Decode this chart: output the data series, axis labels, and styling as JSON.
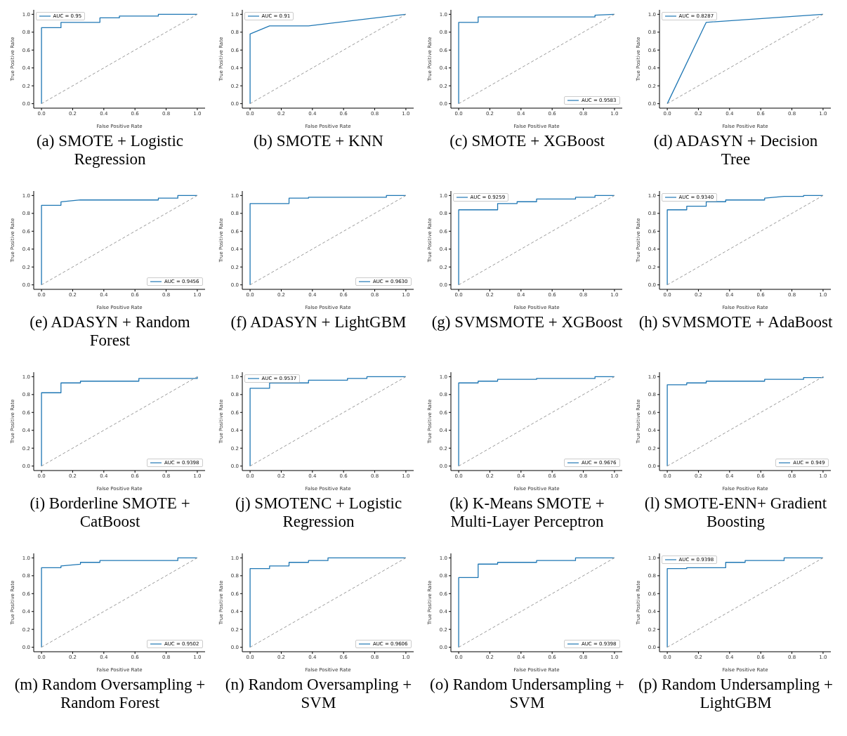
{
  "chart_data": [
    {
      "type": "line",
      "annotations": [
        "(a) SMOTE + Logistic Regression"
      ],
      "xlabel": "False Positive Rate",
      "ylabel": "True Positive Rate",
      "xlim": [
        -0.05,
        1.05
      ],
      "ylim": [
        -0.05,
        1.05
      ],
      "xticks": [
        {
          "value": 0,
          "label": "0.0"
        },
        {
          "value": 0.2,
          "label": "0.2"
        },
        {
          "value": 0.4,
          "label": "0.4"
        },
        {
          "value": 0.6,
          "label": "0.6"
        },
        {
          "value": 0.8,
          "label": "0.8"
        },
        {
          "value": 1,
          "label": "1.0"
        }
      ],
      "yticks": [
        {
          "value": 0,
          "label": "0.0"
        },
        {
          "value": 0.2,
          "label": "0.2"
        },
        {
          "value": 0.4,
          "label": "0.4"
        },
        {
          "value": 0.6,
          "label": "0.6"
        },
        {
          "value": 0.8,
          "label": "0.8"
        },
        {
          "value": 1,
          "label": "1.0"
        }
      ],
      "legend": "top left",
      "grid": false,
      "series": [
        {
          "name": "AUC = 0.95",
          "color": "#1f77b4",
          "line_style": "solid",
          "x": [
            0,
            0,
            0.125,
            0.125,
            0.375,
            0.375,
            0.5,
            0.5,
            0.75,
            0.75,
            1
          ],
          "values": [
            0,
            0.85,
            0.85,
            0.91,
            0.91,
            0.96,
            0.96,
            0.98,
            0.98,
            1,
            1
          ]
        },
        {
          "color": "#999999",
          "line_style": "dashed",
          "x": [
            0,
            1
          ],
          "values": [
            0,
            1
          ]
        }
      ]
    },
    {
      "type": "line",
      "annotations": [
        "(b) SMOTE + KNN"
      ],
      "xlabel": "False Positive Rate",
      "ylabel": "True Positive Rate",
      "xlim": [
        -0.05,
        1.05
      ],
      "ylim": [
        -0.05,
        1.05
      ],
      "xticks": [
        {
          "value": 0,
          "label": "0.0"
        },
        {
          "value": 0.2,
          "label": "0.2"
        },
        {
          "value": 0.4,
          "label": "0.4"
        },
        {
          "value": 0.6,
          "label": "0.6"
        },
        {
          "value": 0.8,
          "label": "0.8"
        },
        {
          "value": 1,
          "label": "1.0"
        }
      ],
      "yticks": [
        {
          "value": 0,
          "label": "0.0"
        },
        {
          "value": 0.2,
          "label": "0.2"
        },
        {
          "value": 0.4,
          "label": "0.4"
        },
        {
          "value": 0.6,
          "label": "0.6"
        },
        {
          "value": 0.8,
          "label": "0.8"
        },
        {
          "value": 1,
          "label": "1.0"
        }
      ],
      "legend": "top left",
      "grid": false,
      "series": [
        {
          "name": "AUC = 0.91",
          "color": "#1f77b4",
          "line_style": "solid",
          "x": [
            0,
            0,
            0.125,
            0.375,
            1
          ],
          "values": [
            0,
            0.78,
            0.87,
            0.87,
            1
          ]
        },
        {
          "color": "#999999",
          "line_style": "dashed",
          "x": [
            0,
            1
          ],
          "values": [
            0,
            1
          ]
        }
      ]
    },
    {
      "type": "line",
      "annotations": [
        "(c) SMOTE + XGBoost"
      ],
      "xlabel": "False Positive Rate",
      "ylabel": "True Positive Rate",
      "xlim": [
        -0.05,
        1.05
      ],
      "ylim": [
        -0.05,
        1.05
      ],
      "xticks": [
        {
          "value": 0,
          "label": "0.0"
        },
        {
          "value": 0.2,
          "label": "0.2"
        },
        {
          "value": 0.4,
          "label": "0.4"
        },
        {
          "value": 0.6,
          "label": "0.6"
        },
        {
          "value": 0.8,
          "label": "0.8"
        },
        {
          "value": 1,
          "label": "1.0"
        }
      ],
      "yticks": [
        {
          "value": 0,
          "label": "0.0"
        },
        {
          "value": 0.2,
          "label": "0.2"
        },
        {
          "value": 0.4,
          "label": "0.4"
        },
        {
          "value": 0.6,
          "label": "0.6"
        },
        {
          "value": 0.8,
          "label": "0.8"
        },
        {
          "value": 1,
          "label": "1.0"
        }
      ],
      "legend": "bottom right",
      "grid": false,
      "series": [
        {
          "name": "AUC = 0.9583",
          "color": "#1f77b4",
          "line_style": "solid",
          "x": [
            0,
            0,
            0.125,
            0.125,
            0.875,
            0.875,
            1
          ],
          "values": [
            0,
            0.91,
            0.91,
            0.97,
            0.97,
            0.99,
            1
          ]
        },
        {
          "color": "#999999",
          "line_style": "dashed",
          "x": [
            0,
            1
          ],
          "values": [
            0,
            1
          ]
        }
      ]
    },
    {
      "type": "line",
      "annotations": [
        "(d) ADASYN + Decision Tree"
      ],
      "xlabel": "False Positive Rate",
      "ylabel": "True Positive Rate",
      "xlim": [
        -0.05,
        1.05
      ],
      "ylim": [
        -0.05,
        1.05
      ],
      "xticks": [
        {
          "value": 0,
          "label": "0.0"
        },
        {
          "value": 0.2,
          "label": "0.2"
        },
        {
          "value": 0.4,
          "label": "0.4"
        },
        {
          "value": 0.6,
          "label": "0.6"
        },
        {
          "value": 0.8,
          "label": "0.8"
        },
        {
          "value": 1,
          "label": "1.0"
        }
      ],
      "yticks": [
        {
          "value": 0,
          "label": "0.0"
        },
        {
          "value": 0.2,
          "label": "0.2"
        },
        {
          "value": 0.4,
          "label": "0.4"
        },
        {
          "value": 0.6,
          "label": "0.6"
        },
        {
          "value": 0.8,
          "label": "0.8"
        },
        {
          "value": 1,
          "label": "1.0"
        }
      ],
      "legend": "top left",
      "grid": false,
      "series": [
        {
          "name": "AUC = 0.8287",
          "color": "#1f77b4",
          "line_style": "solid",
          "x": [
            0,
            0.25,
            1
          ],
          "values": [
            0,
            0.91,
            1
          ]
        },
        {
          "color": "#999999",
          "line_style": "dashed",
          "x": [
            0,
            1
          ],
          "values": [
            0,
            1
          ]
        }
      ]
    },
    {
      "type": "line",
      "annotations": [
        "(e) ADASYN + Random Forest"
      ],
      "xlabel": "False Positive Rate",
      "ylabel": "True Positive Rate",
      "xlim": [
        -0.05,
        1.05
      ],
      "ylim": [
        -0.05,
        1.05
      ],
      "xticks": [
        {
          "value": 0,
          "label": "0.0"
        },
        {
          "value": 0.2,
          "label": "0.2"
        },
        {
          "value": 0.4,
          "label": "0.4"
        },
        {
          "value": 0.6,
          "label": "0.6"
        },
        {
          "value": 0.8,
          "label": "0.8"
        },
        {
          "value": 1,
          "label": "1.0"
        }
      ],
      "yticks": [
        {
          "value": 0,
          "label": "0.0"
        },
        {
          "value": 0.2,
          "label": "0.2"
        },
        {
          "value": 0.4,
          "label": "0.4"
        },
        {
          "value": 0.6,
          "label": "0.6"
        },
        {
          "value": 0.8,
          "label": "0.8"
        },
        {
          "value": 1,
          "label": "1.0"
        }
      ],
      "legend": "bottom right",
      "grid": false,
      "series": [
        {
          "name": "AUC = 0.9456",
          "color": "#1f77b4",
          "line_style": "solid",
          "x": [
            0,
            0,
            0.125,
            0.125,
            0.25,
            0.75,
            0.75,
            0.875,
            0.875,
            1
          ],
          "values": [
            0,
            0.89,
            0.89,
            0.93,
            0.95,
            0.95,
            0.97,
            0.97,
            1,
            1
          ]
        },
        {
          "color": "#999999",
          "line_style": "dashed",
          "x": [
            0,
            1
          ],
          "values": [
            0,
            1
          ]
        }
      ]
    },
    {
      "type": "line",
      "annotations": [
        "(f) ADASYN + LightGBM"
      ],
      "xlabel": "False Positive Rate",
      "ylabel": "True Positive Rate",
      "xlim": [
        -0.05,
        1.05
      ],
      "ylim": [
        -0.05,
        1.05
      ],
      "xticks": [
        {
          "value": 0,
          "label": "0.0"
        },
        {
          "value": 0.2,
          "label": "0.2"
        },
        {
          "value": 0.4,
          "label": "0.4"
        },
        {
          "value": 0.6,
          "label": "0.6"
        },
        {
          "value": 0.8,
          "label": "0.8"
        },
        {
          "value": 1,
          "label": "1.0"
        }
      ],
      "yticks": [
        {
          "value": 0,
          "label": "0.0"
        },
        {
          "value": 0.2,
          "label": "0.2"
        },
        {
          "value": 0.4,
          "label": "0.4"
        },
        {
          "value": 0.6,
          "label": "0.6"
        },
        {
          "value": 0.8,
          "label": "0.8"
        },
        {
          "value": 1,
          "label": "1.0"
        }
      ],
      "legend": "bottom right",
      "grid": false,
      "series": [
        {
          "name": "AUC = 0.9630",
          "color": "#1f77b4",
          "line_style": "solid",
          "x": [
            0,
            0,
            0.25,
            0.25,
            0.375,
            0.375,
            0.875,
            0.875,
            1
          ],
          "values": [
            0,
            0.91,
            0.91,
            0.97,
            0.97,
            0.98,
            0.98,
            1,
            1
          ]
        },
        {
          "color": "#999999",
          "line_style": "dashed",
          "x": [
            0,
            1
          ],
          "values": [
            0,
            1
          ]
        }
      ]
    },
    {
      "type": "line",
      "annotations": [
        "(g) SVMSMOTE + XGBoost"
      ],
      "xlabel": "False Positive Rate",
      "ylabel": "True Positive Rate",
      "xlim": [
        -0.05,
        1.05
      ],
      "ylim": [
        -0.05,
        1.05
      ],
      "xticks": [
        {
          "value": 0,
          "label": "0.0"
        },
        {
          "value": 0.2,
          "label": "0.2"
        },
        {
          "value": 0.4,
          "label": "0.4"
        },
        {
          "value": 0.6,
          "label": "0.6"
        },
        {
          "value": 0.8,
          "label": "0.8"
        },
        {
          "value": 1,
          "label": "1.0"
        }
      ],
      "yticks": [
        {
          "value": 0,
          "label": "0.0"
        },
        {
          "value": 0.2,
          "label": "0.2"
        },
        {
          "value": 0.4,
          "label": "0.4"
        },
        {
          "value": 0.6,
          "label": "0.6"
        },
        {
          "value": 0.8,
          "label": "0.8"
        },
        {
          "value": 1,
          "label": "1.0"
        }
      ],
      "legend": "top left",
      "grid": false,
      "series": [
        {
          "name": "AUC = 0.9259",
          "color": "#1f77b4",
          "line_style": "solid",
          "x": [
            0,
            0,
            0.25,
            0.25,
            0.375,
            0.375,
            0.5,
            0.5,
            0.75,
            0.75,
            0.875,
            0.875,
            1
          ],
          "values": [
            0,
            0.84,
            0.84,
            0.91,
            0.91,
            0.93,
            0.93,
            0.96,
            0.96,
            0.98,
            0.98,
            1,
            1
          ]
        },
        {
          "color": "#999999",
          "line_style": "dashed",
          "x": [
            0,
            1
          ],
          "values": [
            0,
            1
          ]
        }
      ]
    },
    {
      "type": "line",
      "annotations": [
        "(h) SVMSMOTE + AdaBoost"
      ],
      "xlabel": "False Positive Rate",
      "ylabel": "True Positive Rate",
      "xlim": [
        -0.05,
        1.05
      ],
      "ylim": [
        -0.05,
        1.05
      ],
      "xticks": [
        {
          "value": 0,
          "label": "0.0"
        },
        {
          "value": 0.2,
          "label": "0.2"
        },
        {
          "value": 0.4,
          "label": "0.4"
        },
        {
          "value": 0.6,
          "label": "0.6"
        },
        {
          "value": 0.8,
          "label": "0.8"
        },
        {
          "value": 1,
          "label": "1.0"
        }
      ],
      "yticks": [
        {
          "value": 0,
          "label": "0.0"
        },
        {
          "value": 0.2,
          "label": "0.2"
        },
        {
          "value": 0.4,
          "label": "0.4"
        },
        {
          "value": 0.6,
          "label": "0.6"
        },
        {
          "value": 0.8,
          "label": "0.8"
        },
        {
          "value": 1,
          "label": "1.0"
        }
      ],
      "legend": "top left",
      "grid": false,
      "series": [
        {
          "name": "AUC = 0.9340",
          "color": "#1f77b4",
          "line_style": "solid",
          "x": [
            0,
            0,
            0.125,
            0.125,
            0.25,
            0.25,
            0.375,
            0.375,
            0.625,
            0.625,
            0.75,
            0.875,
            0.875,
            1
          ],
          "values": [
            0,
            0.84,
            0.84,
            0.88,
            0.88,
            0.93,
            0.93,
            0.95,
            0.95,
            0.97,
            0.99,
            0.99,
            1,
            1
          ]
        },
        {
          "color": "#999999",
          "line_style": "dashed",
          "x": [
            0,
            1
          ],
          "values": [
            0,
            1
          ]
        }
      ]
    },
    {
      "type": "line",
      "annotations": [
        "(i) Borderline SMOTE + CatBoost"
      ],
      "xlabel": "False Positive Rate",
      "ylabel": "True Positive Rate",
      "xlim": [
        -0.05,
        1.05
      ],
      "ylim": [
        -0.05,
        1.05
      ],
      "xticks": [
        {
          "value": 0,
          "label": "0.0"
        },
        {
          "value": 0.2,
          "label": "0.2"
        },
        {
          "value": 0.4,
          "label": "0.4"
        },
        {
          "value": 0.6,
          "label": "0.6"
        },
        {
          "value": 0.8,
          "label": "0.8"
        },
        {
          "value": 1,
          "label": "1.0"
        }
      ],
      "yticks": [
        {
          "value": 0,
          "label": "0.0"
        },
        {
          "value": 0.2,
          "label": "0.2"
        },
        {
          "value": 0.4,
          "label": "0.4"
        },
        {
          "value": 0.6,
          "label": "0.6"
        },
        {
          "value": 0.8,
          "label": "0.8"
        },
        {
          "value": 1,
          "label": "1.0"
        }
      ],
      "legend": "bottom right",
      "grid": false,
      "series": [
        {
          "name": "AUC = 0.9398",
          "color": "#1f77b4",
          "line_style": "solid",
          "x": [
            0,
            0,
            0.125,
            0.125,
            0.25,
            0.25,
            0.625,
            0.625,
            1,
            1
          ],
          "values": [
            0,
            0.82,
            0.82,
            0.93,
            0.93,
            0.95,
            0.95,
            0.98,
            0.98,
            1
          ]
        },
        {
          "color": "#999999",
          "line_style": "dashed",
          "x": [
            0,
            1
          ],
          "values": [
            0,
            1
          ]
        }
      ]
    },
    {
      "type": "line",
      "annotations": [
        "(j) SMOTENC + Logistic Regression"
      ],
      "xlabel": "False Positive Rate",
      "ylabel": "True Positive Rate",
      "xlim": [
        -0.05,
        1.05
      ],
      "ylim": [
        -0.05,
        1.05
      ],
      "xticks": [
        {
          "value": 0,
          "label": "0.0"
        },
        {
          "value": 0.2,
          "label": "0.2"
        },
        {
          "value": 0.4,
          "label": "0.4"
        },
        {
          "value": 0.6,
          "label": "0.6"
        },
        {
          "value": 0.8,
          "label": "0.8"
        },
        {
          "value": 1,
          "label": "1.0"
        }
      ],
      "yticks": [
        {
          "value": 0,
          "label": "0.0"
        },
        {
          "value": 0.2,
          "label": "0.2"
        },
        {
          "value": 0.4,
          "label": "0.4"
        },
        {
          "value": 0.6,
          "label": "0.6"
        },
        {
          "value": 0.8,
          "label": "0.8"
        },
        {
          "value": 1,
          "label": "1.0"
        }
      ],
      "legend": "top left",
      "grid": false,
      "series": [
        {
          "name": "AUC = 0.9537",
          "color": "#1f77b4",
          "line_style": "solid",
          "x": [
            0,
            0,
            0.125,
            0.125,
            0.375,
            0.375,
            0.625,
            0.625,
            0.75,
            0.75,
            1
          ],
          "values": [
            0,
            0.87,
            0.87,
            0.93,
            0.93,
            0.96,
            0.96,
            0.98,
            0.98,
            1,
            1
          ]
        },
        {
          "color": "#999999",
          "line_style": "dashed",
          "x": [
            0,
            1
          ],
          "values": [
            0,
            1
          ]
        }
      ]
    },
    {
      "type": "line",
      "annotations": [
        "(k) K-Means SMOTE + Multi-Layer Perceptron"
      ],
      "xlabel": "False Positive Rate",
      "ylabel": "True Positive Rate",
      "xlim": [
        -0.05,
        1.05
      ],
      "ylim": [
        -0.05,
        1.05
      ],
      "xticks": [
        {
          "value": 0,
          "label": "0.0"
        },
        {
          "value": 0.2,
          "label": "0.2"
        },
        {
          "value": 0.4,
          "label": "0.4"
        },
        {
          "value": 0.6,
          "label": "0.6"
        },
        {
          "value": 0.8,
          "label": "0.8"
        },
        {
          "value": 1,
          "label": "1.0"
        }
      ],
      "yticks": [
        {
          "value": 0,
          "label": "0.0"
        },
        {
          "value": 0.2,
          "label": "0.2"
        },
        {
          "value": 0.4,
          "label": "0.4"
        },
        {
          "value": 0.6,
          "label": "0.6"
        },
        {
          "value": 0.8,
          "label": "0.8"
        },
        {
          "value": 1,
          "label": "1.0"
        }
      ],
      "legend": "bottom right",
      "grid": false,
      "series": [
        {
          "name": "AUC = 0.9676",
          "color": "#1f77b4",
          "line_style": "solid",
          "x": [
            0,
            0,
            0.125,
            0.125,
            0.25,
            0.25,
            0.5,
            0.5,
            0.875,
            0.875,
            1
          ],
          "values": [
            0,
            0.93,
            0.93,
            0.95,
            0.95,
            0.97,
            0.97,
            0.98,
            0.98,
            1,
            1
          ]
        },
        {
          "color": "#999999",
          "line_style": "dashed",
          "x": [
            0,
            1
          ],
          "values": [
            0,
            1
          ]
        }
      ]
    },
    {
      "type": "line",
      "annotations": [
        "(l) SMOTE-ENN+ Gradient Boosting"
      ],
      "xlabel": "False Positive Rate",
      "ylabel": "True Positive Rate",
      "xlim": [
        -0.05,
        1.05
      ],
      "ylim": [
        -0.05,
        1.05
      ],
      "xticks": [
        {
          "value": 0,
          "label": "0.0"
        },
        {
          "value": 0.2,
          "label": "0.2"
        },
        {
          "value": 0.4,
          "label": "0.4"
        },
        {
          "value": 0.6,
          "label": "0.6"
        },
        {
          "value": 0.8,
          "label": "0.8"
        },
        {
          "value": 1,
          "label": "1.0"
        }
      ],
      "yticks": [
        {
          "value": 0,
          "label": "0.0"
        },
        {
          "value": 0.2,
          "label": "0.2"
        },
        {
          "value": 0.4,
          "label": "0.4"
        },
        {
          "value": 0.6,
          "label": "0.6"
        },
        {
          "value": 0.8,
          "label": "0.8"
        },
        {
          "value": 1,
          "label": "1.0"
        }
      ],
      "legend": "bottom right",
      "grid": false,
      "series": [
        {
          "name": "AUC = 0.949",
          "color": "#1f77b4",
          "line_style": "solid",
          "x": [
            0,
            0,
            0.125,
            0.125,
            0.25,
            0.25,
            0.625,
            0.625,
            0.875,
            0.875,
            1,
            1
          ],
          "values": [
            0,
            0.91,
            0.91,
            0.93,
            0.93,
            0.95,
            0.95,
            0.97,
            0.97,
            0.99,
            0.99,
            1
          ]
        },
        {
          "color": "#999999",
          "line_style": "dashed",
          "x": [
            0,
            1
          ],
          "values": [
            0,
            1
          ]
        }
      ]
    },
    {
      "type": "line",
      "annotations": [
        "(m) Random Oversampling + Random Forest"
      ],
      "xlabel": "False Positive Rate",
      "ylabel": "True Positive Rate",
      "xlim": [
        -0.05,
        1.05
      ],
      "ylim": [
        -0.05,
        1.05
      ],
      "xticks": [
        {
          "value": 0,
          "label": "0.0"
        },
        {
          "value": 0.2,
          "label": "0.2"
        },
        {
          "value": 0.4,
          "label": "0.4"
        },
        {
          "value": 0.6,
          "label": "0.6"
        },
        {
          "value": 0.8,
          "label": "0.8"
        },
        {
          "value": 1,
          "label": "1.0"
        }
      ],
      "yticks": [
        {
          "value": 0,
          "label": "0.0"
        },
        {
          "value": 0.2,
          "label": "0.2"
        },
        {
          "value": 0.4,
          "label": "0.4"
        },
        {
          "value": 0.6,
          "label": "0.6"
        },
        {
          "value": 0.8,
          "label": "0.8"
        },
        {
          "value": 1,
          "label": "1.0"
        }
      ],
      "legend": "bottom right",
      "grid": false,
      "series": [
        {
          "name": "AUC = 0.9502",
          "color": "#1f77b4",
          "line_style": "solid",
          "x": [
            0,
            0,
            0.125,
            0.125,
            0.25,
            0.25,
            0.375,
            0.375,
            0.875,
            0.875,
            1
          ],
          "values": [
            0,
            0.89,
            0.89,
            0.91,
            0.93,
            0.95,
            0.95,
            0.97,
            0.97,
            1,
            1
          ]
        },
        {
          "color": "#999999",
          "line_style": "dashed",
          "x": [
            0,
            1
          ],
          "values": [
            0,
            1
          ]
        }
      ]
    },
    {
      "type": "line",
      "annotations": [
        "(n) Random Oversampling + SVM"
      ],
      "xlabel": "False Positive Rate",
      "ylabel": "True Positive Rate",
      "xlim": [
        -0.05,
        1.05
      ],
      "ylim": [
        -0.05,
        1.05
      ],
      "xticks": [
        {
          "value": 0,
          "label": "0.0"
        },
        {
          "value": 0.2,
          "label": "0.2"
        },
        {
          "value": 0.4,
          "label": "0.4"
        },
        {
          "value": 0.6,
          "label": "0.6"
        },
        {
          "value": 0.8,
          "label": "0.8"
        },
        {
          "value": 1,
          "label": "1.0"
        }
      ],
      "yticks": [
        {
          "value": 0,
          "label": "0.0"
        },
        {
          "value": 0.2,
          "label": "0.2"
        },
        {
          "value": 0.4,
          "label": "0.4"
        },
        {
          "value": 0.6,
          "label": "0.6"
        },
        {
          "value": 0.8,
          "label": "0.8"
        },
        {
          "value": 1,
          "label": "1.0"
        }
      ],
      "legend": "bottom right",
      "grid": false,
      "series": [
        {
          "name": "AUC = 0.9606",
          "color": "#1f77b4",
          "line_style": "solid",
          "x": [
            0,
            0,
            0.125,
            0.125,
            0.25,
            0.25,
            0.375,
            0.375,
            0.5,
            0.5,
            1
          ],
          "values": [
            0,
            0.88,
            0.88,
            0.91,
            0.91,
            0.95,
            0.95,
            0.97,
            0.97,
            1,
            1
          ]
        },
        {
          "color": "#999999",
          "line_style": "dashed",
          "x": [
            0,
            1
          ],
          "values": [
            0,
            1
          ]
        }
      ]
    },
    {
      "type": "line",
      "annotations": [
        "(o) Random Undersampling + SVM"
      ],
      "xlabel": "False Positive Rate",
      "ylabel": "True Positive Rate",
      "xlim": [
        -0.05,
        1.05
      ],
      "ylim": [
        -0.05,
        1.05
      ],
      "xticks": [
        {
          "value": 0,
          "label": "0.0"
        },
        {
          "value": 0.2,
          "label": "0.2"
        },
        {
          "value": 0.4,
          "label": "0.4"
        },
        {
          "value": 0.6,
          "label": "0.6"
        },
        {
          "value": 0.8,
          "label": "0.8"
        },
        {
          "value": 1,
          "label": "1.0"
        }
      ],
      "yticks": [
        {
          "value": 0,
          "label": "0.0"
        },
        {
          "value": 0.2,
          "label": "0.2"
        },
        {
          "value": 0.4,
          "label": "0.4"
        },
        {
          "value": 0.6,
          "label": "0.6"
        },
        {
          "value": 0.8,
          "label": "0.8"
        },
        {
          "value": 1,
          "label": "1.0"
        }
      ],
      "legend": "bottom right",
      "grid": false,
      "series": [
        {
          "name": "AUC = 0.9398",
          "color": "#1f77b4",
          "line_style": "solid",
          "x": [
            0,
            0,
            0.125,
            0.125,
            0.25,
            0.25,
            0.5,
            0.5,
            0.75,
            0.75,
            1
          ],
          "values": [
            0,
            0.78,
            0.78,
            0.93,
            0.93,
            0.95,
            0.95,
            0.97,
            0.97,
            1,
            1
          ]
        },
        {
          "color": "#999999",
          "line_style": "dashed",
          "x": [
            0,
            1
          ],
          "values": [
            0,
            1
          ]
        }
      ]
    },
    {
      "type": "line",
      "annotations": [
        "(p) Random Undersampling + LightGBM"
      ],
      "xlabel": "False Positive Rate",
      "ylabel": "True Positive Rate",
      "xlim": [
        -0.05,
        1.05
      ],
      "ylim": [
        -0.05,
        1.05
      ],
      "xticks": [
        {
          "value": 0,
          "label": "0.0"
        },
        {
          "value": 0.2,
          "label": "0.2"
        },
        {
          "value": 0.4,
          "label": "0.4"
        },
        {
          "value": 0.6,
          "label": "0.6"
        },
        {
          "value": 0.8,
          "label": "0.8"
        },
        {
          "value": 1,
          "label": "1.0"
        }
      ],
      "yticks": [
        {
          "value": 0,
          "label": "0.0"
        },
        {
          "value": 0.2,
          "label": "0.2"
        },
        {
          "value": 0.4,
          "label": "0.4"
        },
        {
          "value": 0.6,
          "label": "0.6"
        },
        {
          "value": 0.8,
          "label": "0.8"
        },
        {
          "value": 1,
          "label": "1.0"
        }
      ],
      "legend": "top left",
      "grid": false,
      "series": [
        {
          "name": "AUC = 0.9398",
          "color": "#1f77b4",
          "line_style": "solid",
          "x": [
            0,
            0,
            0.125,
            0.125,
            0.375,
            0.375,
            0.5,
            0.5,
            0.75,
            0.75,
            1
          ],
          "values": [
            0,
            0.88,
            0.88,
            0.89,
            0.89,
            0.95,
            0.95,
            0.97,
            0.97,
            1,
            1
          ]
        },
        {
          "color": "#999999",
          "line_style": "dashed",
          "x": [
            0,
            1
          ],
          "values": [
            0,
            1
          ]
        }
      ]
    }
  ]
}
